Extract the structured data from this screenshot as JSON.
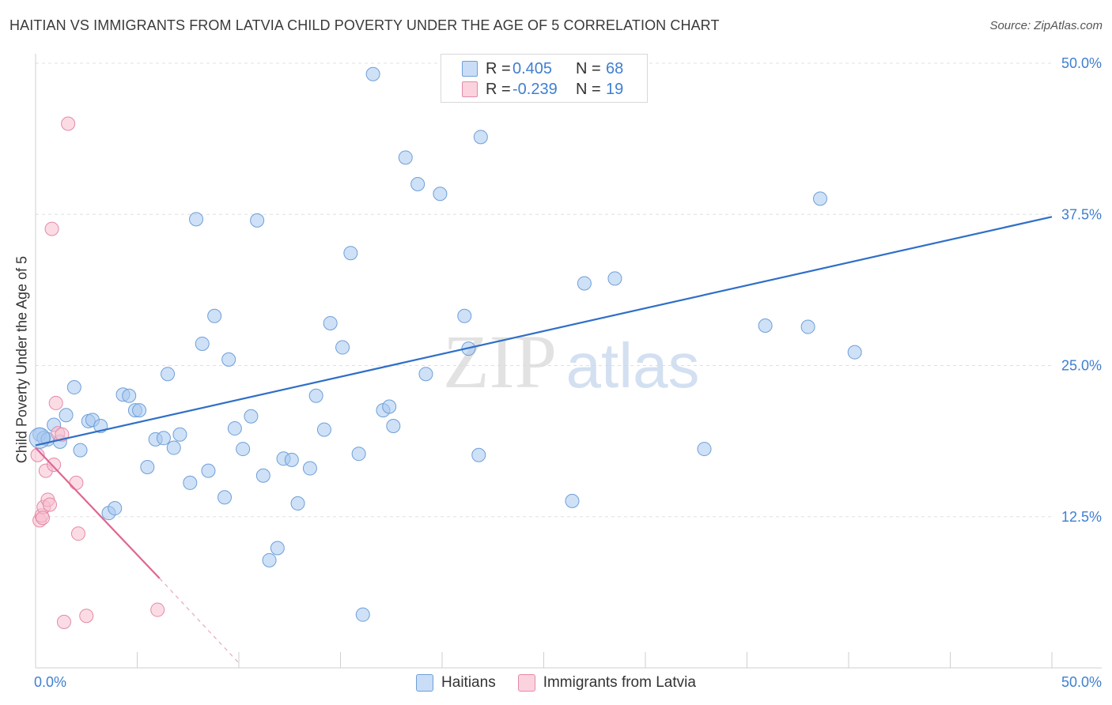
{
  "title": "HAITIAN VS IMMIGRANTS FROM LATVIA CHILD POVERTY UNDER THE AGE OF 5 CORRELATION CHART",
  "source": "Source: ZipAtlas.com",
  "watermark": {
    "zip": "ZIP",
    "atlas": "atlas"
  },
  "legend": {
    "rows": [
      {
        "r_label": "R =",
        "r_value": "0.405",
        "n_label": "N =",
        "n_value": "68",
        "color": "#a8c8f0",
        "border": "#6e9fd8"
      },
      {
        "r_label": "R =",
        "r_value": "-0.239",
        "n_label": "N =",
        "n_value": "19",
        "color": "#f8c0d0",
        "border": "#e48aa6"
      }
    ]
  },
  "chart_data": {
    "type": "scatter",
    "title": "HAITIAN VS IMMIGRANTS FROM LATVIA CHILD POVERTY UNDER THE AGE OF 5 CORRELATION CHART",
    "xlabel": "",
    "ylabel": "Child Poverty Under the Age of 5",
    "xlim": [
      0,
      50
    ],
    "ylim": [
      0,
      50
    ],
    "x_tick_labels": [
      "0.0%",
      "50.0%"
    ],
    "y_tick_labels": [
      "12.5%",
      "25.0%",
      "37.5%",
      "50.0%"
    ],
    "y_ticks": [
      12.5,
      25.0,
      37.5,
      50.0
    ],
    "grid": true,
    "legend_placement": "top-center",
    "series": [
      {
        "name": "Haitians",
        "color": "#a8c8f0",
        "stroke": "#6e9fd8",
        "trend": {
          "x": [
            0,
            50
          ],
          "y": [
            18.4,
            37.3
          ],
          "color": "#2f6fc8"
        },
        "points": [
          [
            0.2,
            19.3
          ],
          [
            0.4,
            19.0
          ],
          [
            0.6,
            18.9
          ],
          [
            0.9,
            20.1
          ],
          [
            1.2,
            18.7
          ],
          [
            1.5,
            20.9
          ],
          [
            1.9,
            23.2
          ],
          [
            2.2,
            18.0
          ],
          [
            2.6,
            20.4
          ],
          [
            2.8,
            20.5
          ],
          [
            3.2,
            20.0
          ],
          [
            3.6,
            12.8
          ],
          [
            3.9,
            13.2
          ],
          [
            4.3,
            22.6
          ],
          [
            4.6,
            22.5
          ],
          [
            4.9,
            21.3
          ],
          [
            5.1,
            21.3
          ],
          [
            5.5,
            16.6
          ],
          [
            5.9,
            18.9
          ],
          [
            6.3,
            19.0
          ],
          [
            6.5,
            24.3
          ],
          [
            6.8,
            18.2
          ],
          [
            7.1,
            19.3
          ],
          [
            7.6,
            15.3
          ],
          [
            7.9,
            37.1
          ],
          [
            8.2,
            26.8
          ],
          [
            8.5,
            16.3
          ],
          [
            8.8,
            29.1
          ],
          [
            9.3,
            14.1
          ],
          [
            9.5,
            25.5
          ],
          [
            9.8,
            19.8
          ],
          [
            10.2,
            18.1
          ],
          [
            10.6,
            20.8
          ],
          [
            10.9,
            37.0
          ],
          [
            11.2,
            15.9
          ],
          [
            11.5,
            8.9
          ],
          [
            11.9,
            9.9
          ],
          [
            12.2,
            17.3
          ],
          [
            12.6,
            17.2
          ],
          [
            12.9,
            13.6
          ],
          [
            13.5,
            16.5
          ],
          [
            13.8,
            22.5
          ],
          [
            14.2,
            19.7
          ],
          [
            14.5,
            28.5
          ],
          [
            15.1,
            26.5
          ],
          [
            15.5,
            34.3
          ],
          [
            15.9,
            17.7
          ],
          [
            16.1,
            4.4
          ],
          [
            16.6,
            49.1
          ],
          [
            17.1,
            21.3
          ],
          [
            17.4,
            21.6
          ],
          [
            17.6,
            20.0
          ],
          [
            18.2,
            42.2
          ],
          [
            18.8,
            40.0
          ],
          [
            19.2,
            24.3
          ],
          [
            19.9,
            39.2
          ],
          [
            21.1,
            29.1
          ],
          [
            21.3,
            26.4
          ],
          [
            21.8,
            17.6
          ],
          [
            21.9,
            43.9
          ],
          [
            26.4,
            13.8
          ],
          [
            27.0,
            31.8
          ],
          [
            28.5,
            32.2
          ],
          [
            32.9,
            18.1
          ],
          [
            35.9,
            28.3
          ],
          [
            38.0,
            28.2
          ],
          [
            38.6,
            38.8
          ],
          [
            40.3,
            26.1
          ]
        ]
      },
      {
        "name": "Immigrants from Latvia",
        "color": "#f8c0d0",
        "stroke": "#e48aa6",
        "trend": {
          "x": [
            0,
            6.1
          ],
          "y": [
            18.2,
            7.4
          ],
          "dash_to": [
            10.0,
            0.4
          ],
          "color": "#e06690"
        },
        "points": [
          [
            0.1,
            17.6
          ],
          [
            0.2,
            12.2
          ],
          [
            0.3,
            12.6
          ],
          [
            0.4,
            13.3
          ],
          [
            0.5,
            16.3
          ],
          [
            0.6,
            13.9
          ],
          [
            0.7,
            13.5
          ],
          [
            0.8,
            36.3
          ],
          [
            0.9,
            16.8
          ],
          [
            1.0,
            21.9
          ],
          [
            1.1,
            19.4
          ],
          [
            1.3,
            19.3
          ],
          [
            1.4,
            3.8
          ],
          [
            1.6,
            45.0
          ],
          [
            2.0,
            15.3
          ],
          [
            2.1,
            11.1
          ],
          [
            2.5,
            4.3
          ],
          [
            6.0,
            4.8
          ],
          [
            0.35,
            12.4
          ]
        ]
      }
    ]
  }
}
